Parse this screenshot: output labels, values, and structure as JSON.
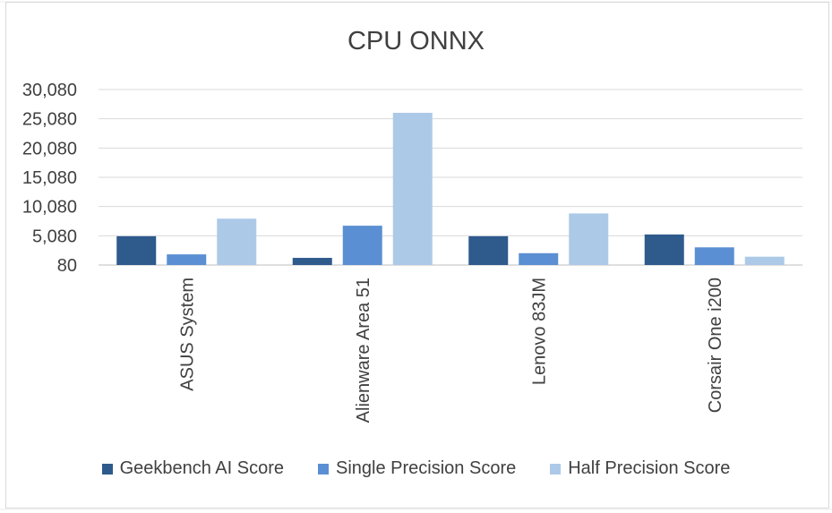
{
  "chart_data": {
    "type": "bar",
    "title": "CPU ONNX",
    "xlabel": "",
    "ylabel": "",
    "categories": [
      "ASUS System",
      "Alienware Area 51",
      "Lenovo 83JM",
      "Corsair One i200"
    ],
    "series": [
      {
        "name": "Geekbench AI Score",
        "color": "#2e5a8c",
        "values": [
          5000,
          1300,
          5000,
          5300
        ]
      },
      {
        "name": "Single Precision Score",
        "color": "#5b8fd3",
        "values": [
          1900,
          6800,
          2100,
          3100
        ]
      },
      {
        "name": "Half Precision Score",
        "color": "#adc9e8",
        "values": [
          8000,
          26100,
          8900,
          1500
        ]
      }
    ],
    "yticks": [
      80,
      5080,
      10080,
      15080,
      20080,
      25080,
      30080
    ],
    "ytick_labels": [
      "80",
      "5,080",
      "10,080",
      "15,080",
      "20,080",
      "25,080",
      "30,080"
    ],
    "ylim": [
      80,
      30080
    ],
    "grid": true,
    "legend_position": "bottom"
  }
}
